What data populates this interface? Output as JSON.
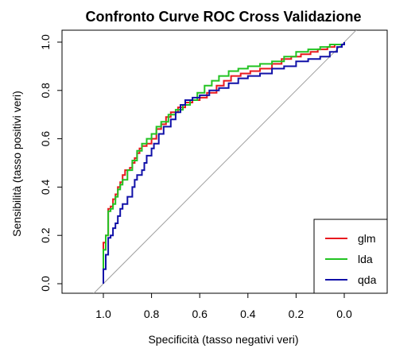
{
  "chart_data": {
    "type": "line",
    "title": "Confronto Curve ROC Cross Validazione",
    "xlabel": "Specificità  (tasso negativi veri)",
    "ylabel": "Sensibilità  (tasso positivi veri)",
    "xlim": [
      1.0,
      0.0
    ],
    "ylim": [
      0.0,
      1.0
    ],
    "x_reversed": true,
    "grid": false,
    "legend_position": "bottom-right",
    "xticks": [
      "1.0",
      "0.8",
      "0.6",
      "0.4",
      "0.2",
      "0.0"
    ],
    "yticks": [
      "0.0",
      "0.2",
      "0.4",
      "0.6",
      "0.8",
      "1.0"
    ],
    "reference_line": {
      "color": "#a0a0a0",
      "from": [
        1.0,
        0.0
      ],
      "to": [
        0.0,
        1.0
      ]
    },
    "series": [
      {
        "name": "glm",
        "color": "#e8191f",
        "points": [
          [
            1.0,
            0.0
          ],
          [
            1.0,
            0.17
          ],
          [
            0.99,
            0.17
          ],
          [
            0.99,
            0.2
          ],
          [
            0.98,
            0.26
          ],
          [
            0.98,
            0.31
          ],
          [
            0.97,
            0.32
          ],
          [
            0.96,
            0.35
          ],
          [
            0.95,
            0.37
          ],
          [
            0.94,
            0.4
          ],
          [
            0.93,
            0.42
          ],
          [
            0.92,
            0.45
          ],
          [
            0.91,
            0.47
          ],
          [
            0.89,
            0.48
          ],
          [
            0.88,
            0.5
          ],
          [
            0.87,
            0.52
          ],
          [
            0.86,
            0.54
          ],
          [
            0.85,
            0.56
          ],
          [
            0.84,
            0.57
          ],
          [
            0.82,
            0.58
          ],
          [
            0.8,
            0.6
          ],
          [
            0.78,
            0.64
          ],
          [
            0.76,
            0.66
          ],
          [
            0.74,
            0.69
          ],
          [
            0.72,
            0.71
          ],
          [
            0.69,
            0.73
          ],
          [
            0.66,
            0.75
          ],
          [
            0.63,
            0.76
          ],
          [
            0.6,
            0.77
          ],
          [
            0.57,
            0.79
          ],
          [
            0.53,
            0.82
          ],
          [
            0.5,
            0.84
          ],
          [
            0.47,
            0.86
          ],
          [
            0.43,
            0.87
          ],
          [
            0.39,
            0.88
          ],
          [
            0.35,
            0.89
          ],
          [
            0.3,
            0.91
          ],
          [
            0.26,
            0.93
          ],
          [
            0.22,
            0.94
          ],
          [
            0.18,
            0.95
          ],
          [
            0.14,
            0.96
          ],
          [
            0.11,
            0.97
          ],
          [
            0.07,
            0.98
          ],
          [
            0.04,
            0.99
          ],
          [
            0.02,
            0.99
          ],
          [
            0.0,
            1.0
          ]
        ]
      },
      {
        "name": "lda",
        "color": "#22c322",
        "points": [
          [
            1.0,
            0.0
          ],
          [
            1.0,
            0.14
          ],
          [
            0.99,
            0.15
          ],
          [
            0.99,
            0.2
          ],
          [
            0.98,
            0.25
          ],
          [
            0.98,
            0.3
          ],
          [
            0.97,
            0.31
          ],
          [
            0.96,
            0.33
          ],
          [
            0.95,
            0.36
          ],
          [
            0.94,
            0.39
          ],
          [
            0.93,
            0.41
          ],
          [
            0.92,
            0.43
          ],
          [
            0.9,
            0.47
          ],
          [
            0.88,
            0.51
          ],
          [
            0.86,
            0.55
          ],
          [
            0.84,
            0.58
          ],
          [
            0.82,
            0.6
          ],
          [
            0.8,
            0.62
          ],
          [
            0.78,
            0.65
          ],
          [
            0.76,
            0.67
          ],
          [
            0.73,
            0.7
          ],
          [
            0.7,
            0.72
          ],
          [
            0.67,
            0.74
          ],
          [
            0.64,
            0.76
          ],
          [
            0.61,
            0.79
          ],
          [
            0.58,
            0.82
          ],
          [
            0.55,
            0.84
          ],
          [
            0.52,
            0.86
          ],
          [
            0.48,
            0.88
          ],
          [
            0.44,
            0.89
          ],
          [
            0.4,
            0.9
          ],
          [
            0.35,
            0.91
          ],
          [
            0.3,
            0.92
          ],
          [
            0.25,
            0.94
          ],
          [
            0.2,
            0.96
          ],
          [
            0.15,
            0.97
          ],
          [
            0.1,
            0.98
          ],
          [
            0.06,
            0.99
          ],
          [
            0.03,
            0.99
          ],
          [
            0.0,
            1.0
          ]
        ]
      },
      {
        "name": "qda",
        "color": "#1010a8",
        "points": [
          [
            1.0,
            0.0
          ],
          [
            1.0,
            0.06
          ],
          [
            0.99,
            0.09
          ],
          [
            0.99,
            0.12
          ],
          [
            0.98,
            0.14
          ],
          [
            0.98,
            0.19
          ],
          [
            0.97,
            0.2
          ],
          [
            0.96,
            0.23
          ],
          [
            0.95,
            0.25
          ],
          [
            0.94,
            0.28
          ],
          [
            0.93,
            0.31
          ],
          [
            0.92,
            0.33
          ],
          [
            0.9,
            0.36
          ],
          [
            0.88,
            0.4
          ],
          [
            0.87,
            0.43
          ],
          [
            0.86,
            0.45
          ],
          [
            0.84,
            0.47
          ],
          [
            0.83,
            0.5
          ],
          [
            0.82,
            0.53
          ],
          [
            0.8,
            0.56
          ],
          [
            0.79,
            0.58
          ],
          [
            0.77,
            0.62
          ],
          [
            0.75,
            0.65
          ],
          [
            0.72,
            0.68
          ],
          [
            0.7,
            0.71
          ],
          [
            0.68,
            0.74
          ],
          [
            0.66,
            0.76
          ],
          [
            0.63,
            0.77
          ],
          [
            0.6,
            0.78
          ],
          [
            0.56,
            0.8
          ],
          [
            0.52,
            0.81
          ],
          [
            0.48,
            0.83
          ],
          [
            0.44,
            0.85
          ],
          [
            0.4,
            0.86
          ],
          [
            0.35,
            0.87
          ],
          [
            0.3,
            0.89
          ],
          [
            0.25,
            0.9
          ],
          [
            0.2,
            0.92
          ],
          [
            0.15,
            0.93
          ],
          [
            0.1,
            0.94
          ],
          [
            0.06,
            0.96
          ],
          [
            0.03,
            0.98
          ],
          [
            0.01,
            0.99
          ],
          [
            0.0,
            1.0
          ]
        ]
      }
    ]
  }
}
